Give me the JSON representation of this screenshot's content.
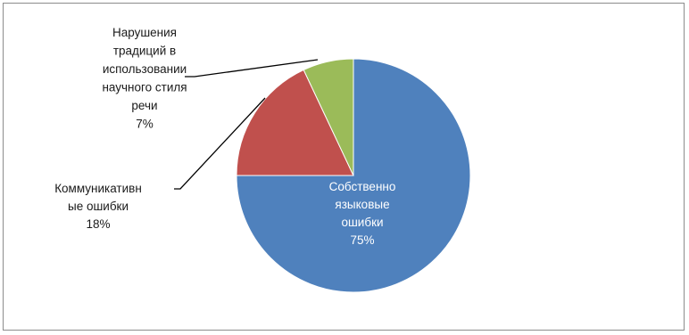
{
  "chart_data": {
    "type": "pie",
    "title": "",
    "slices": [
      {
        "name": "Собственно языковые ошибки",
        "value": 75,
        "color": "#4f81bd",
        "label_lines": [
          "Собственно",
          "языковые",
          "ошибки",
          "75%"
        ]
      },
      {
        "name": "Коммуникативные ошибки",
        "value": 18,
        "color": "#c0504d",
        "label_lines": [
          "Коммуникативн",
          "ые ошибки",
          "18%"
        ]
      },
      {
        "name": "Нарушения традиций в использовании научного стиля речи",
        "value": 7,
        "color": "#9bbb59",
        "label_lines": [
          "Нарушения",
          "традиций  в",
          "использовании",
          "научного стиля",
          "речи",
          "7%"
        ]
      }
    ],
    "start_angle_deg": 0,
    "direction": "clockwise",
    "legend": "none",
    "data_labels": "category name and percent"
  }
}
